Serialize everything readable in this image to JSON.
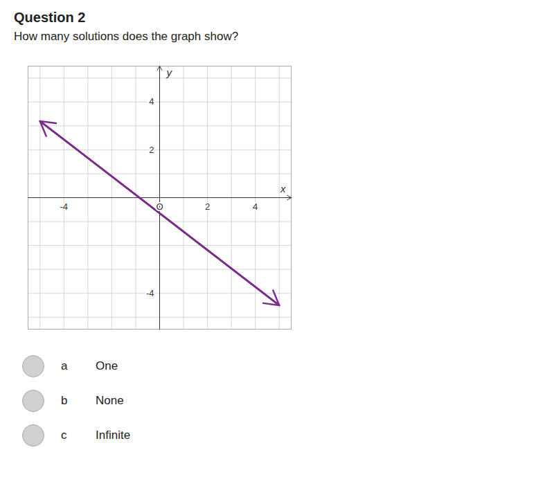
{
  "chart_data": {
    "type": "line",
    "title": "Question 2",
    "subtitle": "How many solutions does the graph show?",
    "xlabel": "x",
    "ylabel": "y",
    "x": [
      -5.0,
      5.0
    ],
    "values": [
      3.2,
      -4.5
    ],
    "color": "#7B2D8B",
    "marker": "arrow",
    "xlim": [
      -5.5,
      5.5
    ],
    "ylim": [
      -5.5,
      5.5
    ],
    "xticks": [
      -4,
      {
        "value": 0,
        "label": "O"
      },
      2,
      4
    ],
    "yticks": [
      -4,
      2,
      4
    ],
    "grid": true,
    "annotations": [
      {
        "label": "a",
        "text": "One"
      },
      {
        "label": "b",
        "text": "None"
      },
      {
        "label": "c",
        "text": "Infinite"
      }
    ]
  }
}
